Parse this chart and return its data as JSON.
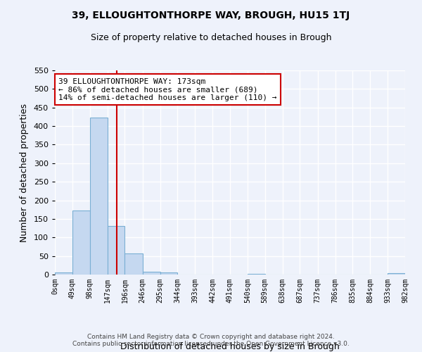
{
  "title": "39, ELLOUGHTONTHORPE WAY, BROUGH, HU15 1TJ",
  "subtitle": "Size of property relative to detached houses in Brough",
  "xlabel": "Distribution of detached houses by size in Brough",
  "ylabel": "Number of detached properties",
  "bin_edges": [
    0,
    49,
    98,
    147,
    196,
    246,
    295,
    344,
    393,
    442,
    491,
    540,
    589,
    638,
    687,
    737,
    786,
    835,
    884,
    933,
    982
  ],
  "bin_labels": [
    "0sqm",
    "49sqm",
    "98sqm",
    "147sqm",
    "196sqm",
    "246sqm",
    "295sqm",
    "344sqm",
    "393sqm",
    "442sqm",
    "491sqm",
    "540sqm",
    "589sqm",
    "638sqm",
    "687sqm",
    "737sqm",
    "786sqm",
    "835sqm",
    "884sqm",
    "933sqm",
    "982sqm"
  ],
  "bar_heights": [
    5,
    172,
    422,
    131,
    56,
    7,
    6,
    0,
    0,
    0,
    0,
    2,
    0,
    0,
    0,
    0,
    0,
    0,
    0,
    3
  ],
  "bar_color": "#c5d8f0",
  "bar_edge_color": "#7aafd4",
  "property_size": 173,
  "vline_color": "#cc0000",
  "annotation_line1": "39 ELLOUGHTONTHORPE WAY: 173sqm",
  "annotation_line2": "← 86% of detached houses are smaller (689)",
  "annotation_line3": "14% of semi-detached houses are larger (110) →",
  "annotation_box_color": "#ffffff",
  "annotation_box_edge_color": "#cc0000",
  "ylim": [
    0,
    550
  ],
  "background_color": "#eef2fb",
  "grid_color": "#ffffff",
  "footer_line1": "Contains HM Land Registry data © Crown copyright and database right 2024.",
  "footer_line2": "Contains public sector information licensed under the Open Government Licence v3.0."
}
